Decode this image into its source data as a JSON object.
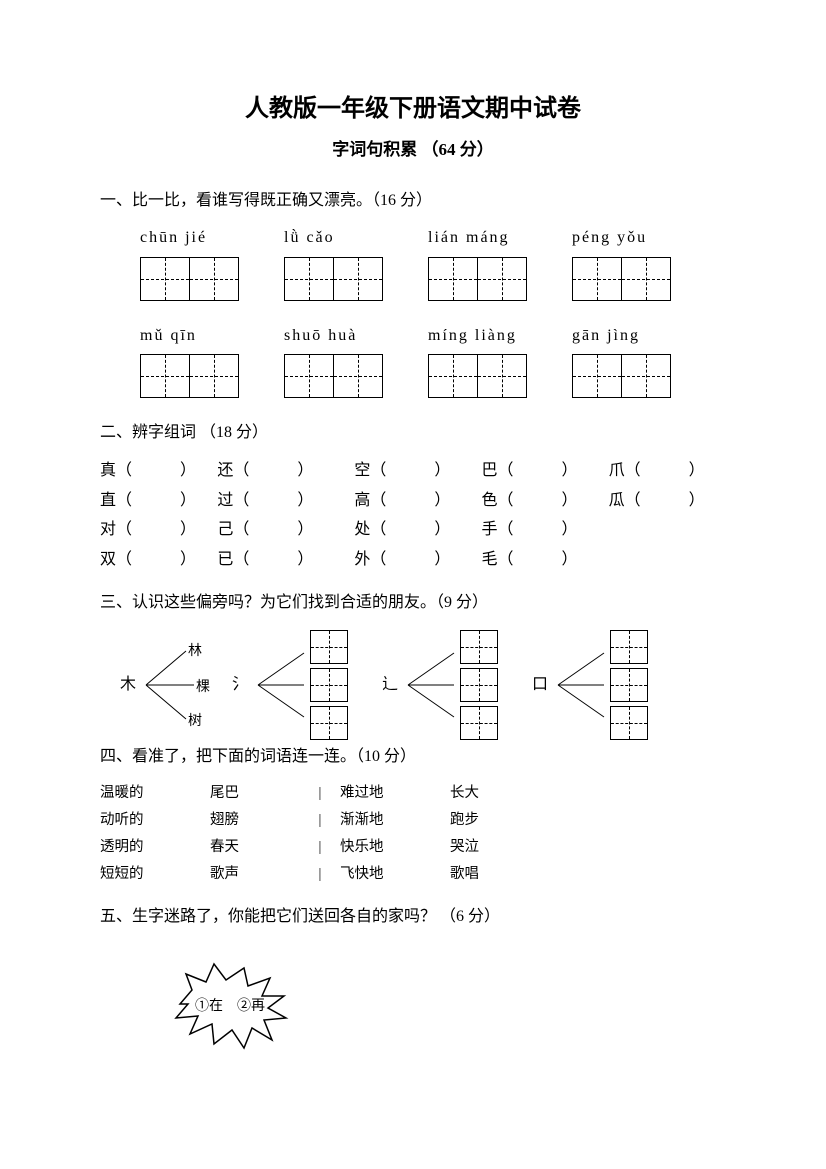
{
  "title": "人教版一年级下册语文期中试卷",
  "subtitle": "字词句积累 （64 分）",
  "s1": {
    "heading": "一、比一比，看谁写得既正确又漂亮。（16 分）",
    "row1": [
      "chūn  jié",
      "lǜ  cǎo",
      "lián máng",
      "péng yǒu"
    ],
    "row2": [
      "mǔ   qīn",
      "shuō huà",
      "míng liàng",
      "gān  jìng"
    ]
  },
  "s2": {
    "heading": "二、辨字组词 （18 分）",
    "rows": [
      [
        "真",
        "还",
        "空",
        "巴",
        "爪"
      ],
      [
        "直",
        "过",
        "高",
        "色",
        "瓜"
      ],
      [
        "对",
        "己",
        "处",
        "手",
        ""
      ],
      [
        "双",
        "已",
        "外",
        "毛",
        ""
      ]
    ]
  },
  "s3": {
    "heading": "三、认识这些偏旁吗？为它们找到合适的朋友。（9 分）",
    "groups": [
      {
        "radical": "木",
        "examples": [
          "林",
          "棵",
          "树"
        ]
      },
      {
        "radical": "氵",
        "examples": [
          "",
          "",
          ""
        ]
      },
      {
        "radical": "辶",
        "examples": [
          "",
          "",
          ""
        ]
      },
      {
        "radical": "口",
        "examples": [
          "",
          "",
          ""
        ]
      }
    ]
  },
  "s4": {
    "heading": "四、看准了，把下面的词语连一连。（10 分）",
    "rows": [
      [
        "温暖的",
        "尾巴",
        "难过地",
        "长大"
      ],
      [
        "动听的",
        "翅膀",
        "渐渐地",
        "跑步"
      ],
      [
        "透明的",
        "春天",
        "快乐地",
        "哭泣"
      ],
      [
        "短短的",
        "歌声",
        "飞快地",
        "歌唱"
      ]
    ]
  },
  "s5": {
    "heading": "五、生字迷路了，你能把它们送回各自的家吗？ （6 分）",
    "burst": "①在　②再"
  }
}
